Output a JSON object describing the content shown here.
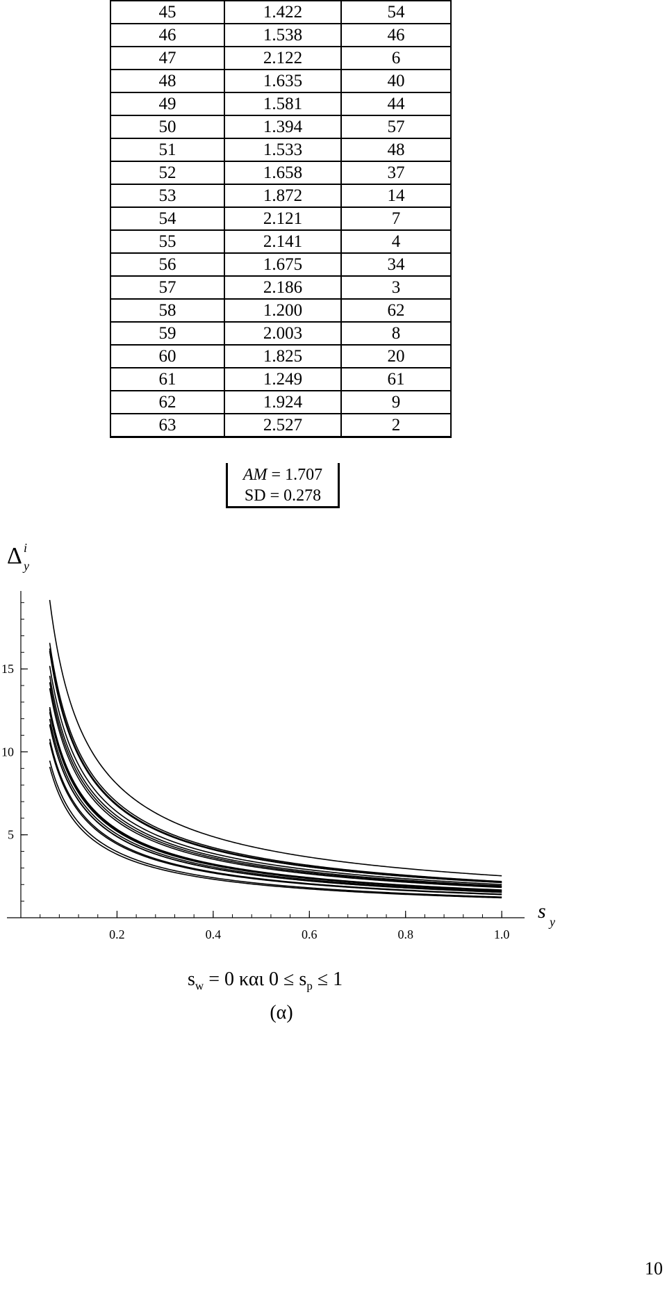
{
  "table": {
    "rows": [
      [
        "45",
        "1.422",
        "54"
      ],
      [
        "46",
        "1.538",
        "46"
      ],
      [
        "47",
        "2.122",
        "6"
      ],
      [
        "48",
        "1.635",
        "40"
      ],
      [
        "49",
        "1.581",
        "44"
      ],
      [
        "50",
        "1.394",
        "57"
      ],
      [
        "51",
        "1.533",
        "48"
      ],
      [
        "52",
        "1.658",
        "37"
      ],
      [
        "53",
        "1.872",
        "14"
      ],
      [
        "54",
        "2.121",
        "7"
      ],
      [
        "55",
        "2.141",
        "4"
      ],
      [
        "56",
        "1.675",
        "34"
      ],
      [
        "57",
        "2.186",
        "3"
      ],
      [
        "58",
        "1.200",
        "62"
      ],
      [
        "59",
        "2.003",
        "8"
      ],
      [
        "60",
        "1.825",
        "20"
      ],
      [
        "61",
        "1.249",
        "61"
      ],
      [
        "62",
        "1.924",
        "9"
      ],
      [
        "63",
        "2.527",
        "2"
      ]
    ],
    "stats": {
      "am_label": "AM",
      "am_value": " = 1.707",
      "sd": "SD = 0.278"
    }
  },
  "chart_data": {
    "type": "line",
    "ylabel": "Δ",
    "ylabel_sup": "i",
    "ylabel_sub": "y",
    "xlabel": "s",
    "xlabel_sub": "y",
    "x_ticks": [
      "0.2",
      "0.4",
      "0.6",
      "0.8",
      "1.0"
    ],
    "y_ticks": [
      "5",
      "10",
      "15"
    ],
    "xlim": [
      0,
      1.02
    ],
    "ylim": [
      0,
      19.7
    ],
    "grid": false,
    "series_description": "family of 19 decreasing curves y = k / x^0.72, one per table row",
    "coefficients": [
      1.422,
      1.538,
      2.122,
      1.635,
      1.581,
      1.394,
      1.533,
      1.658,
      1.872,
      2.121,
      2.141,
      1.675,
      2.186,
      1.2,
      2.003,
      1.825,
      1.249,
      1.924,
      2.527
    ],
    "exponent": 0.72
  },
  "caption": {
    "sw": "s",
    "sw_sub": "w",
    "mid": " = 0  και  0 ≤ s",
    "sp_sub": "p",
    "end": " ≤ 1",
    "label": "(α)"
  },
  "page_number": "10"
}
